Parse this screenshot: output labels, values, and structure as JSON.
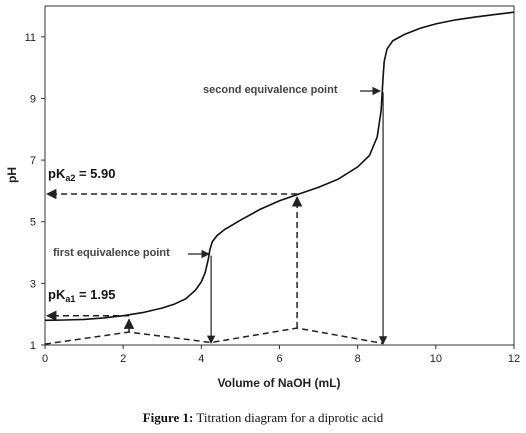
{
  "chart_data": {
    "type": "line",
    "title": "",
    "xlabel": "Volume of NaOH (mL)",
    "ylabel": "pH",
    "xlim": [
      0,
      12
    ],
    "ylim": [
      1,
      12
    ],
    "x_ticks": [
      0,
      2,
      4,
      6,
      8,
      10,
      12
    ],
    "y_ticks": [
      1,
      3,
      5,
      7,
      9,
      11
    ],
    "grid": false,
    "series": [
      {
        "name": "",
        "points": [
          [
            0,
            1.8
          ],
          [
            0.5,
            1.81
          ],
          [
            1.0,
            1.83
          ],
          [
            1.5,
            1.88
          ],
          [
            2.0,
            1.95
          ],
          [
            2.5,
            2.05
          ],
          [
            3.0,
            2.2
          ],
          [
            3.3,
            2.32
          ],
          [
            3.6,
            2.5
          ],
          [
            3.85,
            2.78
          ],
          [
            4.0,
            3.05
          ],
          [
            4.1,
            3.35
          ],
          [
            4.18,
            3.8
          ],
          [
            4.22,
            4.1
          ],
          [
            4.28,
            4.35
          ],
          [
            4.4,
            4.55
          ],
          [
            4.6,
            4.75
          ],
          [
            5.0,
            5.05
          ],
          [
            5.5,
            5.4
          ],
          [
            6.0,
            5.68
          ],
          [
            6.5,
            5.9
          ],
          [
            7.0,
            6.12
          ],
          [
            7.5,
            6.38
          ],
          [
            8.0,
            6.78
          ],
          [
            8.3,
            7.15
          ],
          [
            8.5,
            7.75
          ],
          [
            8.6,
            8.6
          ],
          [
            8.65,
            9.7
          ],
          [
            8.68,
            10.2
          ],
          [
            8.75,
            10.6
          ],
          [
            8.9,
            10.87
          ],
          [
            9.2,
            11.08
          ],
          [
            9.6,
            11.28
          ],
          [
            10.0,
            11.42
          ],
          [
            10.5,
            11.55
          ],
          [
            11.0,
            11.64
          ],
          [
            11.5,
            11.72
          ],
          [
            12.0,
            11.8
          ]
        ]
      }
    ],
    "annotations": {
      "pka2_label": "pK",
      "pka2_sub": "a2",
      "pka2_value": " = 5.90",
      "pka1_label": "pK",
      "pka1_sub": "a1",
      "pka1_value": " = 1.95",
      "first_equivalence_point": "first equivalence point",
      "second_equivalence_point": "second equivalence point",
      "pka1_y": 1.95,
      "pka2_y": 5.9,
      "half_eq1_x": 2.15,
      "eq1_x": 4.25,
      "half_eq2_x": 6.45,
      "eq2_x": 8.65,
      "eq1_y": 3.9,
      "eq2_y": 9.2
    }
  },
  "caption": {
    "label": "Figure 1:",
    "text": " Titration diagram for a diprotic acid"
  }
}
